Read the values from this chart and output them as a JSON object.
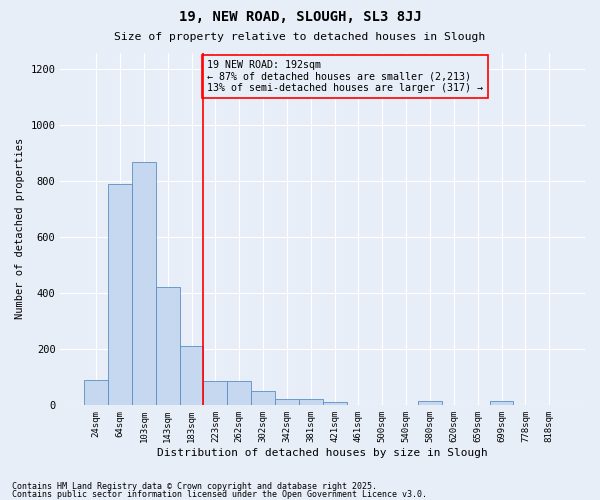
{
  "title1": "19, NEW ROAD, SLOUGH, SL3 8JJ",
  "title2": "Size of property relative to detached houses in Slough",
  "xlabel": "Distribution of detached houses by size in Slough",
  "ylabel": "Number of detached properties",
  "categories": [
    "24sqm",
    "64sqm",
    "103sqm",
    "143sqm",
    "183sqm",
    "223sqm",
    "262sqm",
    "302sqm",
    "342sqm",
    "381sqm",
    "421sqm",
    "461sqm",
    "500sqm",
    "540sqm",
    "580sqm",
    "620sqm",
    "659sqm",
    "699sqm",
    "778sqm",
    "818sqm"
  ],
  "values": [
    90,
    790,
    870,
    420,
    210,
    85,
    85,
    50,
    20,
    20,
    10,
    0,
    0,
    0,
    15,
    0,
    0,
    15,
    0,
    0
  ],
  "bar_color": "#c5d8f0",
  "bar_edge_color": "#5b8ec4",
  "background_color": "#e8eef8",
  "grid_color": "#ffffff",
  "red_line_x": 4.5,
  "annotation_box_text": "19 NEW ROAD: 192sqm\n← 87% of detached houses are smaller (2,213)\n13% of semi-detached houses are larger (317) →",
  "footer1": "Contains HM Land Registry data © Crown copyright and database right 2025.",
  "footer2": "Contains public sector information licensed under the Open Government Licence v3.0.",
  "ylim": [
    0,
    1260
  ],
  "yticks": [
    0,
    200,
    400,
    600,
    800,
    1000,
    1200
  ]
}
